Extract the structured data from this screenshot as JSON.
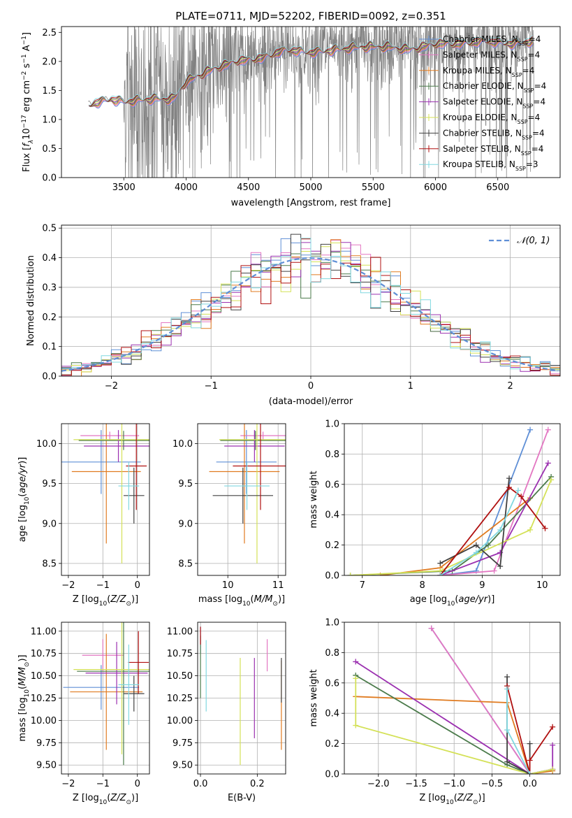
{
  "chart_data": [
    {
      "type": "line",
      "title": "PLATE=0711, MJD=52202, FIBERID=0092, z=0.351",
      "xlabel": "wavelength [Angstrom, rest frame]",
      "ylabel": "Flux [f_λ 10^-17 erg cm^-2 s^-1 A^-1]",
      "xlim": [
        3000,
        7000
      ],
      "ylim": [
        0,
        2.6
      ],
      "xticks": [
        "3500",
        "4000",
        "4500",
        "5000",
        "5500",
        "6000",
        "6500"
      ],
      "yticks": [
        "0.0",
        "0.5",
        "1.0",
        "1.5",
        "2.0",
        "2.5"
      ],
      "data_color": "#808080",
      "model_curve": {
        "x": [
          3220,
          3300,
          3400,
          3500,
          3700,
          3900,
          4000,
          4200,
          4400,
          4600,
          4800,
          5000,
          5200,
          5400,
          5600,
          5800,
          6000,
          6200,
          6400,
          6600,
          6780
        ],
        "y": [
          1.25,
          1.3,
          1.35,
          1.3,
          1.35,
          1.35,
          1.65,
          1.85,
          2.0,
          2.05,
          2.2,
          2.15,
          2.2,
          2.25,
          2.25,
          2.2,
          2.3,
          2.3,
          2.35,
          2.3,
          2.35
        ]
      },
      "legend": [
        {
          "label": "Chabrier MILES, N",
          "sub": "SSP",
          "suffix": "=4",
          "color": "#5f8fd6"
        },
        {
          "label": "Salpeter MILES, N",
          "sub": "SSP",
          "suffix": "=4",
          "color": "#e377c2"
        },
        {
          "label": "Kroupa MILES, N",
          "sub": "SSP",
          "suffix": "=4",
          "color": "#e07b20"
        },
        {
          "label": "Chabrier ELODIE, N",
          "sub": "SSP",
          "suffix": "=4",
          "color": "#4a7a4a"
        },
        {
          "label": "Salpeter ELODIE, N",
          "sub": "SSP",
          "suffix": "=4",
          "color": "#9b30b0"
        },
        {
          "label": "Kroupa ELODIE, N",
          "sub": "SSP",
          "suffix": "=4",
          "color": "#d4e157"
        },
        {
          "label": "Chabrier STELIB, N",
          "sub": "SSP",
          "suffix": "=4",
          "color": "#404040"
        },
        {
          "label": "Salpeter STELIB, N",
          "sub": "SSP",
          "suffix": "=4",
          "color": "#b01010"
        },
        {
          "label": "Kroupa STELIB, N",
          "sub": "SSP",
          "suffix": "=3",
          "color": "#80d8e0"
        }
      ]
    },
    {
      "type": "line",
      "xlabel": "(data-model)/error",
      "ylabel": "Normed distribution",
      "xlim": [
        -2.5,
        2.5
      ],
      "ylim": [
        0,
        0.51
      ],
      "xticks": [
        "−2",
        "−1",
        "0",
        "1",
        "2"
      ],
      "yticks": [
        "0.0",
        "0.1",
        "0.2",
        "0.3",
        "0.4",
        "0.5"
      ],
      "legend": [
        {
          "label": "𝒩(0, 1)",
          "color": "#5f8fd6",
          "style": "dashed"
        }
      ]
    },
    {
      "type": "scatter",
      "xlabel": "Z [log10(Z/Z⊙)]",
      "ylabel": "age [log10(age/yr)]",
      "xlim": [
        -2.2,
        0.35
      ],
      "ylim": [
        8.35,
        10.25
      ],
      "xticks": [
        "−2",
        "−1",
        "0"
      ],
      "yticks": [
        "8.5",
        "9.0",
        "9.5",
        "10.0"
      ],
      "points": [
        {
          "x": -1.05,
          "y": 9.77,
          "xerr": 1.15,
          "yerr": 0.4,
          "color": "#5f8fd6"
        },
        {
          "x": -0.8,
          "y": 10.1,
          "xerr": 0.85,
          "yerr": 0.05,
          "color": "#e377c2"
        },
        {
          "x": -0.9,
          "y": 9.65,
          "xerr": 1.0,
          "yerr": 0.9,
          "color": "#e07b20"
        },
        {
          "x": -0.4,
          "y": 10.04,
          "xerr": 1.3,
          "yerr": 0.12,
          "color": "#4a7a4a"
        },
        {
          "x": -0.55,
          "y": 9.97,
          "xerr": 1.0,
          "yerr": 0.2,
          "color": "#9b30b0"
        },
        {
          "x": -0.45,
          "y": 10.05,
          "xerr": 1.4,
          "yerr": 1.55,
          "color": "#d4e157"
        },
        {
          "x": -0.1,
          "y": 9.35,
          "xerr": 0.3,
          "yerr": 0.35,
          "color": "#404040"
        },
        {
          "x": -0.03,
          "y": 9.72,
          "xerr": 0.3,
          "yerr": 0.55,
          "color": "#b01010"
        },
        {
          "x": -0.25,
          "y": 9.47,
          "xerr": 0.3,
          "yerr": 0.3,
          "color": "#80d8e0"
        }
      ]
    },
    {
      "type": "scatter",
      "xlabel": "mass [log10(M/M⊙)]",
      "xlim": [
        9.4,
        11.15
      ],
      "ylim": [
        8.35,
        10.25
      ],
      "xticks": [
        "10",
        "11"
      ],
      "yticks": [
        "8.5",
        "9.0",
        "9.5",
        "10.0"
      ],
      "points": [
        {
          "x": 10.37,
          "y": 9.77,
          "xerr": 0.6,
          "yerr": 0.4,
          "color": "#5f8fd6"
        },
        {
          "x": 10.7,
          "y": 10.1,
          "xerr": 0.45,
          "yerr": 0.05,
          "color": "#e377c2"
        },
        {
          "x": 10.33,
          "y": 9.65,
          "xerr": 0.7,
          "yerr": 0.9,
          "color": "#e07b20"
        },
        {
          "x": 10.55,
          "y": 10.04,
          "xerr": 0.7,
          "yerr": 0.12,
          "color": "#4a7a4a"
        },
        {
          "x": 10.53,
          "y": 9.97,
          "xerr": 0.6,
          "yerr": 0.2,
          "color": "#9b30b0"
        },
        {
          "x": 10.58,
          "y": 10.05,
          "xerr": 0.75,
          "yerr": 1.55,
          "color": "#d4e157"
        },
        {
          "x": 10.3,
          "y": 9.35,
          "xerr": 0.6,
          "yerr": 0.35,
          "color": "#404040"
        },
        {
          "x": 10.65,
          "y": 9.72,
          "xerr": 0.55,
          "yerr": 0.55,
          "color": "#b01010"
        },
        {
          "x": 10.38,
          "y": 9.47,
          "xerr": 0.45,
          "yerr": 0.3,
          "color": "#80d8e0"
        }
      ]
    },
    {
      "type": "line",
      "xlabel": "age [log10(age/yr)]",
      "ylabel": "mass weight",
      "xlim": [
        6.7,
        10.3
      ],
      "ylim": [
        0,
        1.0
      ],
      "xticks": [
        "7",
        "8",
        "9",
        "10"
      ],
      "yticks": [
        "0.0",
        "0.2",
        "0.4",
        "0.6",
        "0.8",
        "1.0"
      ],
      "series": [
        {
          "color": "#5f8fd6",
          "x": [
            8.3,
            8.9,
            9.8
          ],
          "y": [
            0.0,
            0.03,
            0.96
          ]
        },
        {
          "color": "#e377c2",
          "x": [
            8.3,
            9.2,
            10.1
          ],
          "y": [
            0.0,
            0.03,
            0.96
          ]
        },
        {
          "color": "#e07b20",
          "x": [
            7.3,
            8.3,
            9.8
          ],
          "y": [
            0.0,
            0.05,
            0.51
          ]
        },
        {
          "color": "#4a7a4a",
          "x": [
            6.8,
            8.5,
            9.1,
            10.15
          ],
          "y": [
            0.0,
            0.03,
            0.2,
            0.65
          ]
        },
        {
          "color": "#9b30b0",
          "x": [
            8.3,
            9.3,
            10.1
          ],
          "y": [
            0.0,
            0.15,
            0.74
          ]
        },
        {
          "color": "#d4e157",
          "x": [
            6.8,
            8.3,
            9.8,
            10.15
          ],
          "y": [
            0.0,
            0.03,
            0.3,
            0.63
          ]
        },
        {
          "color": "#404040",
          "x": [
            8.3,
            8.9,
            9.3,
            9.45
          ],
          "y": [
            0.08,
            0.2,
            0.06,
            0.64
          ]
        },
        {
          "color": "#b01010",
          "x": [
            8.3,
            9.45,
            9.65,
            10.05
          ],
          "y": [
            0.0,
            0.58,
            0.52,
            0.31
          ]
        },
        {
          "color": "#80d8e0",
          "x": [
            8.3,
            8.9,
            9.3,
            9.6
          ],
          "y": [
            0.0,
            0.15,
            0.3,
            0.56
          ]
        }
      ]
    },
    {
      "type": "scatter",
      "xlabel": "Z [log10(Z/Z⊙)]",
      "ylabel": "mass [log10(M/M⊙)]",
      "xlim": [
        -2.2,
        0.35
      ],
      "ylim": [
        9.4,
        11.1
      ],
      "xticks": [
        "−2",
        "−1",
        "0"
      ],
      "yticks": [
        "9.50",
        "9.75",
        "10.00",
        "10.25",
        "10.50",
        "10.75",
        "11.00"
      ],
      "points": [
        {
          "x": -1.05,
          "y": 10.37,
          "xerr": 1.1,
          "yerr": 0.25,
          "color": "#5f8fd6"
        },
        {
          "x": -1.0,
          "y": 10.73,
          "xerr": 0.6,
          "yerr": 0.18,
          "color": "#e377c2"
        },
        {
          "x": -0.9,
          "y": 10.32,
          "xerr": 1.05,
          "yerr": 0.65,
          "color": "#e07b20"
        },
        {
          "x": -0.4,
          "y": 10.55,
          "xerr": 1.35,
          "yerr": 1.05,
          "color": "#4a7a4a"
        },
        {
          "x": -0.6,
          "y": 10.53,
          "xerr": 0.9,
          "yerr": 0.35,
          "color": "#9b30b0"
        },
        {
          "x": -0.45,
          "y": 10.57,
          "xerr": 1.4,
          "yerr": 0.95,
          "color": "#d4e157"
        },
        {
          "x": -0.1,
          "y": 10.3,
          "xerr": 0.3,
          "yerr": 0.2,
          "color": "#404040"
        },
        {
          "x": 0.03,
          "y": 10.65,
          "xerr": 0.3,
          "yerr": 0.35,
          "color": "#b01010"
        },
        {
          "x": -0.25,
          "y": 10.4,
          "xerr": 0.3,
          "yerr": 0.45,
          "color": "#80d8e0"
        }
      ]
    },
    {
      "type": "scatter",
      "xlabel": "E(B-V)",
      "xlim": [
        -0.01,
        0.3
      ],
      "ylim": [
        9.4,
        11.1
      ],
      "xticks": [
        "0.0",
        "0.2"
      ],
      "yticks": [
        "9.50",
        "9.75",
        "10.00",
        "10.25",
        "10.50",
        "10.75",
        "11.00"
      ],
      "points": [
        {
          "x": 0.0,
          "y": 10.9,
          "yerr": 0.15,
          "color": "#5f8fd6"
        },
        {
          "x": 0.235,
          "y": 10.73,
          "yerr": 0.18,
          "color": "#e377c2"
        },
        {
          "x": 0.285,
          "y": 10.17,
          "yerr": 0.5,
          "color": "#e07b20"
        },
        {
          "x": 0.0,
          "y": 10.6,
          "yerr": 0.35,
          "color": "#4a7a4a"
        },
        {
          "x": 0.19,
          "y": 10.25,
          "yerr": 0.45,
          "color": "#9b30b0"
        },
        {
          "x": 0.14,
          "y": 10.1,
          "yerr": 0.6,
          "color": "#d4e157"
        },
        {
          "x": 0.285,
          "y": 10.45,
          "yerr": 0.25,
          "color": "#404040"
        },
        {
          "x": 0.0,
          "y": 10.95,
          "yerr": 0.1,
          "color": "#b01010"
        },
        {
          "x": 0.02,
          "y": 10.5,
          "yerr": 0.4,
          "color": "#80d8e0"
        }
      ]
    },
    {
      "type": "line",
      "xlabel": "Z [log10(Z/Z⊙)]",
      "ylabel": "mass weight",
      "xlim": [
        -2.45,
        0.4
      ],
      "ylim": [
        0,
        1.0
      ],
      "xticks": [
        "−2.0",
        "−1.5",
        "−1.0",
        "−0.5",
        "0.0"
      ],
      "yticks": [
        "0.0",
        "0.2",
        "0.4",
        "0.6",
        "0.8",
        "1.0"
      ],
      "series": [
        {
          "color": "#5f8fd6",
          "x": [
            -1.3,
            0.0,
            0.3
          ],
          "y": [
            0.96,
            0.0,
            0.03
          ]
        },
        {
          "color": "#e377c2",
          "x": [
            -1.3,
            0.0,
            0.3
          ],
          "y": [
            0.96,
            0.0,
            0.03
          ]
        },
        {
          "color": "#e07b20",
          "x": [
            -2.3,
            -0.3,
            0.0,
            0.3
          ],
          "y": [
            0.51,
            0.47,
            0.0,
            0.02
          ]
        },
        {
          "color": "#4a7a4a",
          "x": [
            -2.3,
            -0.3,
            0.0,
            0.3
          ],
          "y": [
            0.65,
            0.06,
            0.0,
            0.03
          ]
        },
        {
          "color": "#9b30b0",
          "x": [
            -2.3,
            0.0,
            0.3,
            0.3
          ],
          "y": [
            0.74,
            0.0,
            0.03,
            0.19
          ]
        },
        {
          "color": "#d4e157",
          "x": [
            -2.3,
            -2.3,
            0.0,
            0.3
          ],
          "y": [
            0.63,
            0.32,
            0.0,
            0.03
          ]
        },
        {
          "color": "#404040",
          "x": [
            -0.3,
            -0.3,
            0.0,
            0.0
          ],
          "y": [
            0.64,
            0.08,
            0.0,
            0.2
          ]
        },
        {
          "color": "#b01010",
          "x": [
            -0.3,
            0.0,
            0.0,
            0.3
          ],
          "y": [
            0.58,
            0.0,
            0.09,
            0.31
          ]
        },
        {
          "color": "#80d8e0",
          "x": [
            -0.3,
            -0.3,
            0.0
          ],
          "y": [
            0.56,
            0.29,
            0.0
          ]
        }
      ]
    }
  ]
}
